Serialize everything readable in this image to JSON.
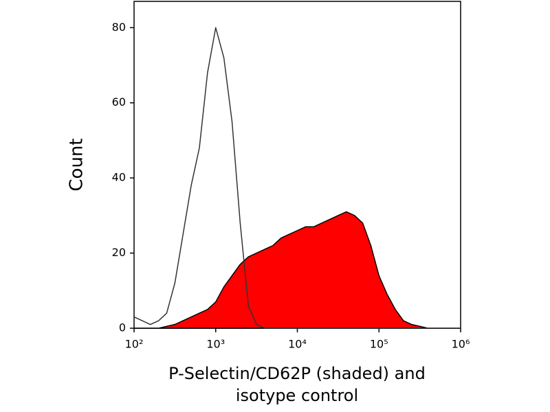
{
  "chart_data": {
    "type": "line",
    "y_label": "Count",
    "x_label": "P-Selectin/CD62P (shaded) and isotype control",
    "x": [
      100,
      126,
      158,
      200,
      251,
      316,
      398,
      501,
      631,
      794,
      1000,
      1259,
      1585,
      1995,
      2512,
      3162,
      3981,
      5012,
      6310,
      7943,
      10000,
      12589,
      15849,
      19953,
      25119,
      31623,
      39811,
      50119,
      63096,
      79433,
      100000,
      125893,
      158489,
      199526,
      251189,
      316228,
      398107,
      501187,
      630957,
      794328,
      1000000
    ],
    "series": [
      {
        "color": "#000000",
        "fill": "#ff0000",
        "values": [
          0,
          0,
          0,
          0,
          0.5,
          1,
          2,
          3,
          4,
          5,
          7,
          11,
          14,
          17,
          19,
          20,
          21,
          22,
          24,
          25,
          26,
          27,
          27,
          28,
          29,
          30,
          31,
          30,
          28,
          22,
          14,
          9,
          5,
          2,
          1,
          0.5,
          0,
          0,
          0,
          0,
          0
        ]
      },
      {
        "color": "#333333",
        "values": [
          3,
          2,
          1,
          2,
          4,
          12,
          25,
          38,
          48,
          68,
          80,
          72,
          55,
          28,
          6,
          1,
          0,
          0,
          0,
          0,
          0,
          0,
          0,
          0,
          0,
          0,
          0,
          0,
          0,
          0,
          0,
          0,
          0,
          0,
          0,
          0,
          0,
          0,
          0,
          0,
          0
        ]
      }
    ],
    "xscale": "log",
    "xlim": [
      100,
      1000000
    ],
    "xticks": [
      {
        "value": 100,
        "label": "10²"
      },
      {
        "value": 1000,
        "label": "10³"
      },
      {
        "value": 10000,
        "label": "10⁴"
      },
      {
        "value": 100000,
        "label": "10⁵"
      },
      {
        "value": 1000000,
        "label": "10⁶"
      }
    ],
    "ylim": [
      0,
      87
    ],
    "yticks": [
      0,
      20,
      40,
      60,
      80
    ],
    "grid": false
  }
}
